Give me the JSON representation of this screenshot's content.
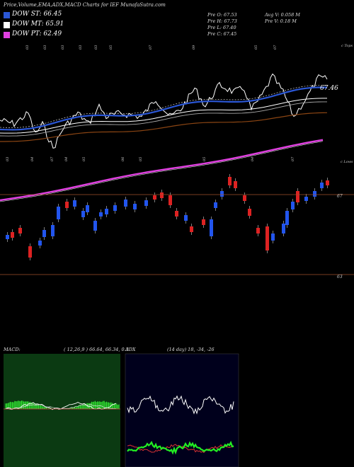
{
  "header": {
    "title": "Price,Volume,EMA,ADX,MACD Charts for IEF MunafaSutra.com"
  },
  "legend": [
    {
      "label": "DOW ST: 66.45",
      "color": "#2b57d6"
    },
    {
      "label": "DOW MT: 65.91",
      "color": "#ffffff"
    },
    {
      "label": "DOW PT: 62.49",
      "color": "#e040e0"
    }
  ],
  "ohlc": {
    "open": "Pre  O: 67.53",
    "high": "Pre  H: 67.73",
    "low": "Pre  L: 67.40",
    "close": "Pre  C: 67.45",
    "avg_volume": "Avg V: 0.058  M",
    "prev_volume": "Pre  V: 0.18  M"
  },
  "top_panel": {
    "last_value_label": "67.46",
    "corner_label": "c Tops",
    "month_labels": [
      "03",
      "03",
      "03",
      "03",
      "03",
      "05",
      "07",
      "09",
      "05",
      "07"
    ]
  },
  "candle_panel": {
    "corner_label": "c Lows",
    "month_labels": [
      "03",
      "04",
      "07",
      "04",
      "05",
      "06",
      "05",
      "05",
      "04",
      "07"
    ],
    "price_labels": [
      "67",
      "63"
    ]
  },
  "macd": {
    "label": "MACD:",
    "params": "( 12,26,9 ) 66.64,  66.34,  0.3"
  },
  "adx": {
    "label": "ADX",
    "params": "(14  day) 18,  -34,  -26"
  },
  "colors": {
    "background": "#000000",
    "ema_short": "#2b57d6",
    "ema_mid": "#ffffff",
    "ema_long": "#8b4513",
    "dow_pt": "#e040e0",
    "candle_up": "#2255ee",
    "candle_down": "#dd2222",
    "macd_bg": "#0a3a0a",
    "adx_bg": "#000022",
    "adx_green": "#22ee22",
    "adx_red": "#dd3333"
  },
  "chart_data": {
    "type": "line",
    "title": "Price,Volume,EMA,ADX,MACD Charts for IEF MunafaSutra.com",
    "series": [
      {
        "name": "DOW ST",
        "last": 66.45
      },
      {
        "name": "DOW MT",
        "last": 65.91
      },
      {
        "name": "DOW PT",
        "last": 62.49
      }
    ],
    "previous_bar": {
      "open": 67.53,
      "high": 67.73,
      "low": 67.4,
      "close": 67.45
    },
    "macd": {
      "fast": 12,
      "slow": 26,
      "signal": 9,
      "values": [
        66.64,
        66.34,
        0.3
      ]
    },
    "adx": {
      "period": 14,
      "values": [
        18,
        -34,
        -26
      ]
    },
    "price_levels": [
      67,
      63
    ]
  }
}
